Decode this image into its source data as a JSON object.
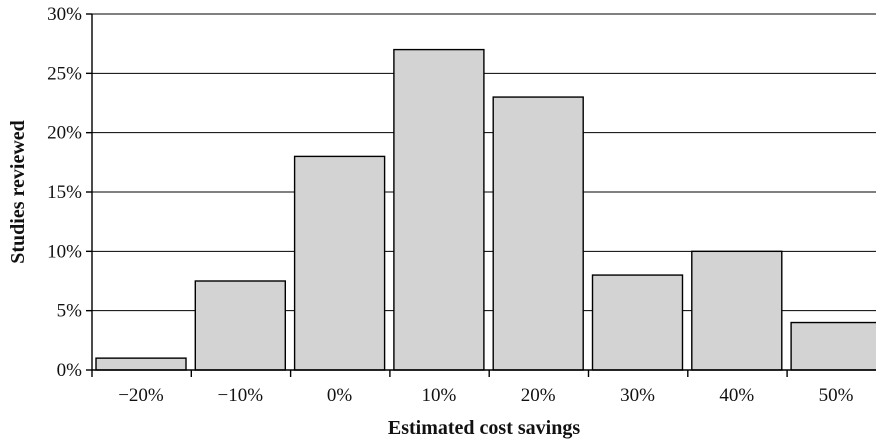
{
  "chart_data": {
    "type": "bar",
    "categories": [
      "−20%",
      "−10%",
      "0%",
      "10%",
      "20%",
      "30%",
      "40%",
      "50%"
    ],
    "values": [
      1,
      7.5,
      18,
      27,
      23,
      8,
      10,
      4
    ],
    "xlabel": "Estimated cost savings",
    "ylabel": "Studies reviewed",
    "ylim": [
      0,
      30
    ],
    "yticks": [
      0,
      5,
      10,
      15,
      20,
      25,
      30
    ],
    "ytick_labels": [
      "0%",
      "5%",
      "10%",
      "15%",
      "20%",
      "25%",
      "30%"
    ],
    "grid": true,
    "legend": "none",
    "bar_color": "#d3d3d3"
  }
}
